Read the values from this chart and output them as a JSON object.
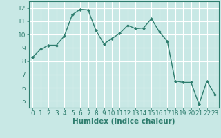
{
  "x": [
    0,
    1,
    2,
    3,
    4,
    5,
    6,
    7,
    8,
    9,
    10,
    11,
    12,
    13,
    14,
    15,
    16,
    17,
    18,
    19,
    20,
    21,
    22,
    23
  ],
  "y": [
    8.3,
    8.9,
    9.2,
    9.2,
    9.9,
    11.5,
    11.9,
    11.85,
    10.3,
    9.3,
    9.7,
    10.1,
    10.7,
    10.45,
    10.5,
    11.2,
    10.2,
    9.5,
    6.5,
    6.4,
    6.4,
    4.75,
    6.5,
    5.5
  ],
  "line_color": "#2e7d6e",
  "marker": "D",
  "marker_size": 2.0,
  "xlabel": "Humidex (Indice chaleur)",
  "xlim": [
    -0.5,
    23.5
  ],
  "ylim": [
    4.5,
    12.5
  ],
  "yticks": [
    5,
    6,
    7,
    8,
    9,
    10,
    11,
    12
  ],
  "xticks": [
    0,
    1,
    2,
    3,
    4,
    5,
    6,
    7,
    8,
    9,
    10,
    11,
    12,
    13,
    14,
    15,
    16,
    17,
    18,
    19,
    20,
    21,
    22,
    23
  ],
  "background_color": "#c8e8e5",
  "grid_color": "#ffffff",
  "tick_label_fontsize": 6.5,
  "xlabel_fontsize": 7.5,
  "line_width": 1.0
}
